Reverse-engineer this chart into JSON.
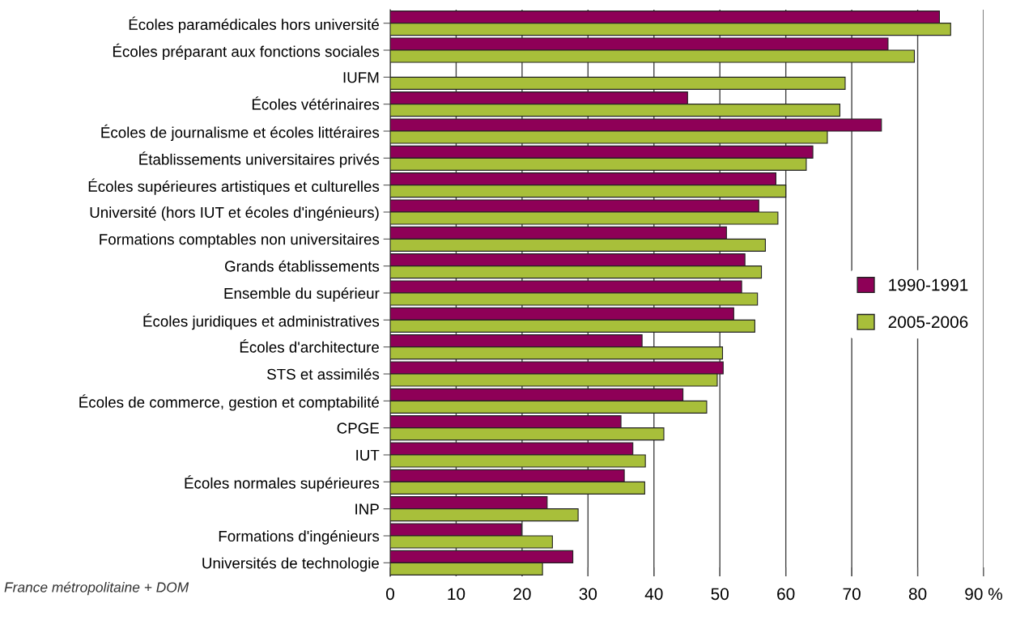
{
  "chart_data": {
    "type": "bar",
    "orientation": "horizontal",
    "categories": [
      "Écoles paramédicales hors université",
      "Écoles préparant aux fonctions sociales",
      "IUFM",
      "Écoles vétérinaires",
      "Écoles de journalisme et écoles littéraires",
      "Établissements universitaires privés",
      "Écoles supérieures artistiques et culturelles",
      "Université (hors IUT et écoles d'ingénieurs)",
      "Formations comptables non universitaires",
      "Grands établissements",
      "Ensemble du supérieur",
      "Écoles juridiques et administratives",
      "Écoles d'architecture",
      "STS et assimilés",
      "Écoles de commerce, gestion et comptabilité",
      "CPGE",
      "IUT",
      "Écoles normales supérieures",
      "INP",
      "Formations d'ingénieurs",
      "Universités de technologie"
    ],
    "series": [
      {
        "name": "1990-1991",
        "color": "#8e0057",
        "values": [
          83.3,
          75.5,
          null,
          45.1,
          74.5,
          64.1,
          58.5,
          55.9,
          51.0,
          53.8,
          53.3,
          52.1,
          38.2,
          50.5,
          44.4,
          35.0,
          36.8,
          35.5,
          23.8,
          19.9,
          27.7
        ]
      },
      {
        "name": "2005-2006",
        "color": "#a8bf3a",
        "values": [
          85.0,
          79.5,
          69.0,
          68.2,
          66.3,
          63.1,
          60.0,
          58.8,
          56.9,
          56.3,
          55.7,
          55.3,
          50.4,
          49.6,
          48.0,
          41.5,
          38.7,
          38.6,
          28.5,
          24.6,
          23.1
        ]
      }
    ],
    "xlim": [
      0,
      90
    ],
    "xticks": [
      0,
      10,
      20,
      30,
      40,
      50,
      60,
      70,
      80,
      {
        "value": 90,
        "label": "90 %"
      }
    ],
    "grid": "x",
    "legend": "right",
    "annotations": [
      "France métropolitaine + DOM"
    ]
  }
}
